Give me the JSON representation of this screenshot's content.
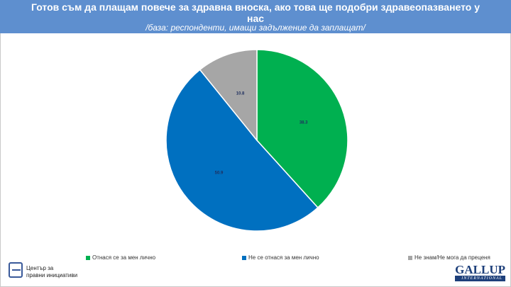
{
  "header": {
    "title": "Готов съм да плащам повече за здравна вноска, ако това ще подобри здравеопазването у нас",
    "subtitle": "/база: респонденти, имащи задължение да заплащат/"
  },
  "chart_data": {
    "type": "pie",
    "title": "Готов съм да плащам повече за здравна вноска, ако това ще подобри здравеопазването у нас",
    "subtitle": "/база: респонденти, имащи задължение да заплащат/",
    "legend_position": "bottom",
    "slices": [
      {
        "label": "Отнася се за мен лично",
        "value": 38.3,
        "color": "#00b050"
      },
      {
        "label": "Не се отнася за мен лично",
        "value": 50.9,
        "color": "#0070c0"
      },
      {
        "label": "Не знам/Не мога да преценя",
        "value": 10.8,
        "color": "#a6a6a6"
      }
    ],
    "data_labels": [
      "38.3",
      "50.9",
      "10.8"
    ]
  },
  "footer": {
    "org_line1": "Център за",
    "org_line2": "правни инициативи",
    "gallup_word": "GALLUP",
    "gallup_sub": "INTERNATIONAL"
  }
}
